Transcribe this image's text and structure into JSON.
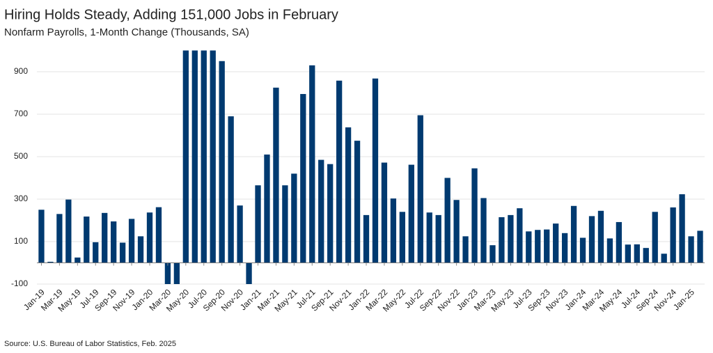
{
  "chart_data": {
    "type": "bar",
    "title": "Hiring Holds Steady, Adding 151,000 Jobs in February",
    "subtitle": "Nonfarm Payrolls, 1-Month Change (Thousands, SA)",
    "source": "Source: U.S. Bureau of Labor Statistics, Feb. 2025",
    "categories": [
      "Jan-19",
      null,
      "Mar-19",
      null,
      "May-19",
      null,
      "Jul-19",
      null,
      "Sep-19",
      null,
      "Nov-19",
      null,
      "Jan-20",
      null,
      "Mar-20",
      null,
      "May-20",
      null,
      "Jul-20",
      null,
      "Sep-20",
      null,
      "Nov-20",
      null,
      "Jan-21",
      null,
      "Mar-21",
      null,
      "May-21",
      null,
      "Jul-21",
      null,
      "Sep-21",
      null,
      "Nov-21",
      null,
      "Jan-22",
      null,
      "Mar-22",
      null,
      "May-22",
      null,
      "Jul-22",
      null,
      "Sep-22",
      null,
      "Nov-22",
      null,
      "Jan-23",
      null,
      "Mar-23",
      null,
      "May-23",
      null,
      "Jul-23",
      null,
      "Sep-23",
      null,
      "Nov-23",
      null,
      "Jan-24",
      null,
      "Mar-24",
      null,
      "May-24",
      null,
      "Jul-24",
      null,
      "Sep-24",
      null,
      "Nov-24",
      null,
      "Jan-25",
      null
    ],
    "values": [
      250,
      5,
      230,
      298,
      25,
      218,
      97,
      235,
      195,
      95,
      207,
      125,
      237,
      262,
      -100,
      -100,
      1000,
      1000,
      1000,
      1000,
      950,
      690,
      270,
      -100,
      365,
      510,
      825,
      365,
      420,
      795,
      930,
      485,
      465,
      858,
      638,
      575,
      225,
      868,
      472,
      303,
      240,
      462,
      695,
      237,
      225,
      400,
      296,
      125,
      445,
      305,
      83,
      215,
      225,
      257,
      148,
      155,
      157,
      185,
      140,
      268,
      118,
      220,
      245,
      115,
      192,
      86,
      87,
      70,
      240,
      43,
      261,
      323,
      125,
      151
    ],
    "color": "#003a70",
    "ylim": [
      -100,
      1000
    ],
    "yticks": [
      -100,
      100,
      300,
      500,
      700,
      900
    ],
    "grid": true
  }
}
